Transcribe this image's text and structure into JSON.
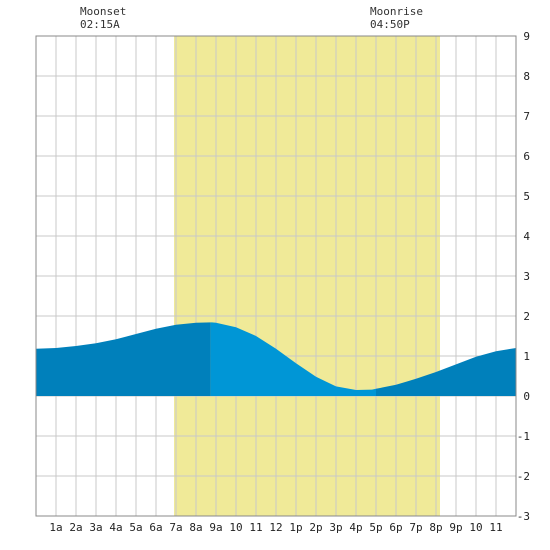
{
  "annotations": {
    "moonset": {
      "label": "Moonset",
      "time": "02:15A"
    },
    "moonrise": {
      "label": "Moonrise",
      "time": "04:50P"
    }
  },
  "colors": {
    "daylight": "#f0ea98",
    "tide_dark": "#0080bb",
    "tide_light": "#0096d6",
    "grid": "#c8c8c8",
    "frame": "#888888"
  },
  "chart_data": {
    "type": "area",
    "title": "",
    "xlabel": "",
    "ylabel": "",
    "grid": true,
    "legend": "none",
    "xlim": [
      0,
      24
    ],
    "ylim": [
      -3,
      9
    ],
    "x_ticks": [
      {
        "x": 1,
        "label": "1a"
      },
      {
        "x": 2,
        "label": "2a"
      },
      {
        "x": 3,
        "label": "3a"
      },
      {
        "x": 4,
        "label": "4a"
      },
      {
        "x": 5,
        "label": "5a"
      },
      {
        "x": 6,
        "label": "6a"
      },
      {
        "x": 7,
        "label": "7a"
      },
      {
        "x": 8,
        "label": "8a"
      },
      {
        "x": 9,
        "label": "9a"
      },
      {
        "x": 10,
        "label": "10"
      },
      {
        "x": 11,
        "label": "11"
      },
      {
        "x": 12,
        "label": "12"
      },
      {
        "x": 13,
        "label": "1p"
      },
      {
        "x": 14,
        "label": "2p"
      },
      {
        "x": 15,
        "label": "3p"
      },
      {
        "x": 16,
        "label": "4p"
      },
      {
        "x": 17,
        "label": "5p"
      },
      {
        "x": 18,
        "label": "6p"
      },
      {
        "x": 19,
        "label": "7p"
      },
      {
        "x": 20,
        "label": "8p"
      },
      {
        "x": 21,
        "label": "9p"
      },
      {
        "x": 22,
        "label": "10"
      },
      {
        "x": 23,
        "label": "11"
      }
    ],
    "y_ticks": [
      {
        "y": 9,
        "label": "9"
      },
      {
        "y": 8,
        "label": "8"
      },
      {
        "y": 7,
        "label": "7"
      },
      {
        "y": 6,
        "label": "6"
      },
      {
        "y": 5,
        "label": "5"
      },
      {
        "y": 4,
        "label": "4"
      },
      {
        "y": 3,
        "label": "3"
      },
      {
        "y": 2,
        "label": "2"
      },
      {
        "y": 1,
        "label": "1"
      },
      {
        "y": 0,
        "label": "0"
      },
      {
        "y": -1,
        "label": "-1"
      },
      {
        "y": -2,
        "label": "-2"
      },
      {
        "y": -3,
        "label": "-3"
      }
    ],
    "daylight_band": {
      "start_hour": 6.9,
      "end_hour": 20.2
    },
    "moon_events": {
      "moonset_hour": 2.25,
      "moonrise_hour": 16.83
    },
    "tide_color_change_hours": [
      8.73,
      17.0
    ],
    "series": [
      {
        "x": [
          0,
          1,
          2,
          3,
          4,
          5,
          6,
          7,
          8,
          8.8,
          9,
          10,
          11,
          12,
          13,
          14,
          15,
          16,
          16.8,
          17,
          18,
          19,
          20,
          21,
          22,
          23,
          24
        ],
        "values": [
          1.18,
          1.2,
          1.25,
          1.32,
          1.42,
          1.55,
          1.68,
          1.78,
          1.83,
          1.84,
          1.83,
          1.72,
          1.5,
          1.18,
          0.82,
          0.48,
          0.24,
          0.15,
          0.16,
          0.18,
          0.28,
          0.43,
          0.6,
          0.79,
          0.98,
          1.12,
          1.2
        ]
      }
    ]
  }
}
